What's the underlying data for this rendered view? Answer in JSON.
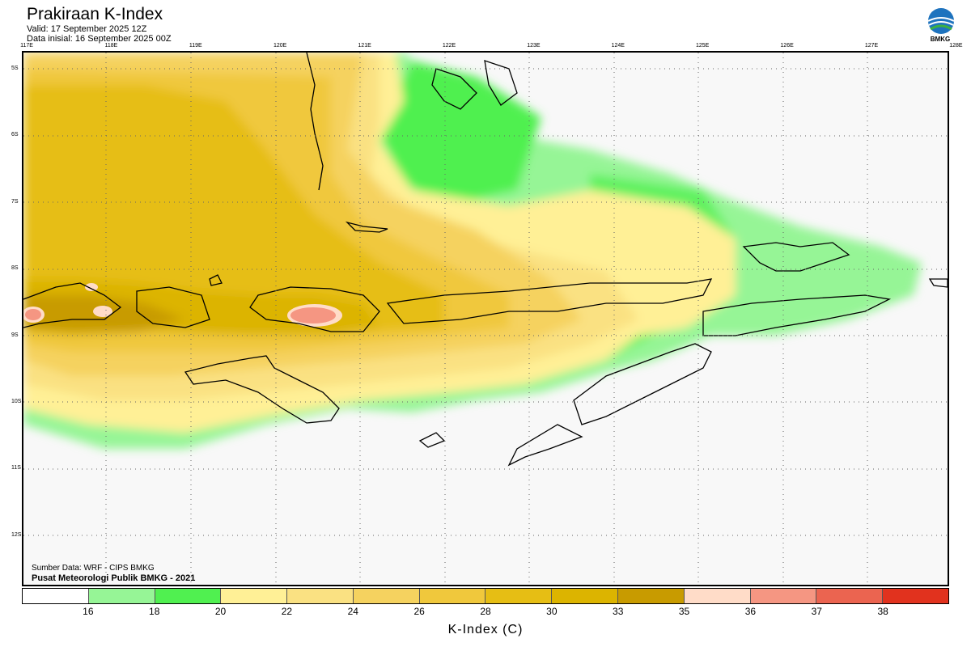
{
  "header": {
    "title": "Prakiraan K-Index",
    "valid": "Valid: 17 September 2025 12Z",
    "initial": "Data inisial: 16 September 2025 00Z"
  },
  "logo": {
    "text": "BMKG"
  },
  "map": {
    "lon_labels": [
      "117E",
      "118E",
      "119E",
      "120E",
      "121E",
      "122E",
      "123E",
      "124E",
      "125E",
      "126E",
      "127E",
      "128E"
    ],
    "lat_labels": [
      "5S",
      "6S",
      "7S",
      "8S",
      "9S",
      "10S",
      "11S",
      "12S"
    ],
    "source_line1": "Sumber Data: WRF - CIPS BMKG",
    "source_line2": "Pusat Meteorologi Publik BMKG - 2021"
  },
  "colorbar": {
    "title": "K-Index (C)",
    "labels": [
      "16",
      "18",
      "20",
      "22",
      "24",
      "26",
      "28",
      "30",
      "33",
      "35",
      "36",
      "37",
      "38"
    ],
    "colors": [
      "#ffffff",
      "#96f596",
      "#50f050",
      "#fff096",
      "#fae182",
      "#f5d25f",
      "#f0c83c",
      "#e6be14",
      "#dcb400",
      "#c89b00",
      "#ffdcc8",
      "#f59682",
      "#eb6450",
      "#e1321e"
    ]
  }
}
